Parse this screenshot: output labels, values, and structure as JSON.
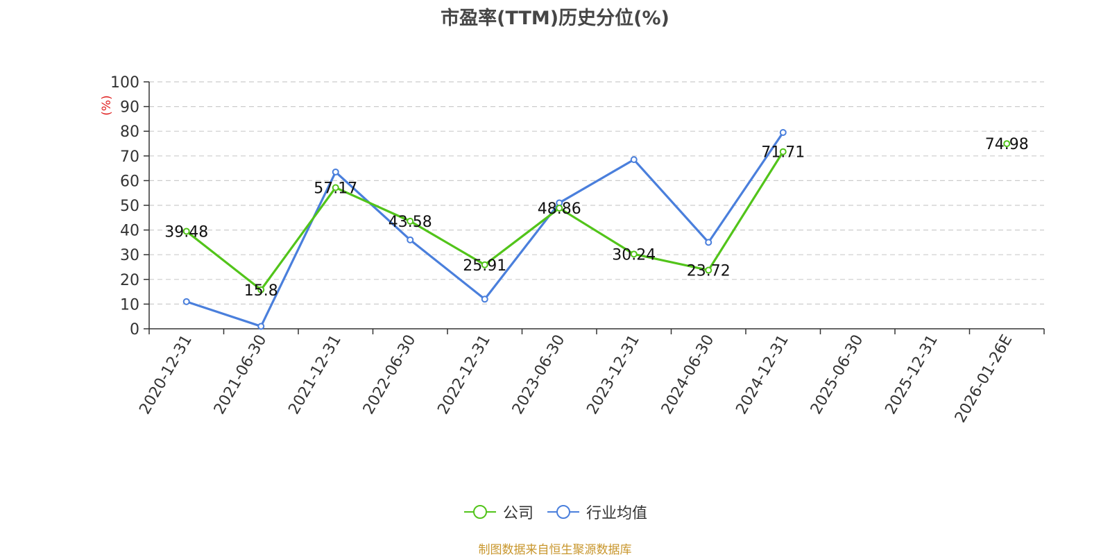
{
  "chart_data": {
    "type": "line",
    "title": "市盈率(TTM)历史分位(%)",
    "ylabel": "(%)",
    "ylim": [
      0,
      100
    ],
    "yticks": [
      "0",
      "10",
      "20",
      "30",
      "40",
      "50",
      "60",
      "70",
      "80",
      "90",
      "100"
    ],
    "categories": [
      "2020-12-31",
      "2021-06-30",
      "2021-12-31",
      "2022-06-30",
      "2022-12-31",
      "2023-06-30",
      "2023-12-31",
      "2024-06-30",
      "2024-12-31",
      "2025-06-30",
      "2025-12-31",
      "2026-01-26E"
    ],
    "grid": true,
    "legend_position": "bottom",
    "series": [
      {
        "name": "公司",
        "color": "#52c41a",
        "values": [
          39.48,
          15.8,
          57.17,
          43.58,
          25.91,
          48.86,
          30.24,
          23.72,
          71.71,
          null,
          null,
          74.98
        ],
        "labels": [
          "39.48",
          "15.8",
          "57.17",
          "43.58",
          "25.91",
          "48.86",
          "30.24",
          "23.72",
          "71.71",
          null,
          null,
          "74.98"
        ]
      },
      {
        "name": "行业均值",
        "color": "#4a7fdc",
        "values": [
          11,
          1,
          63.5,
          36,
          12,
          51,
          68.5,
          35,
          79.5,
          null,
          null,
          null
        ]
      }
    ]
  },
  "source": "制图数据来自恒生聚源数据库"
}
